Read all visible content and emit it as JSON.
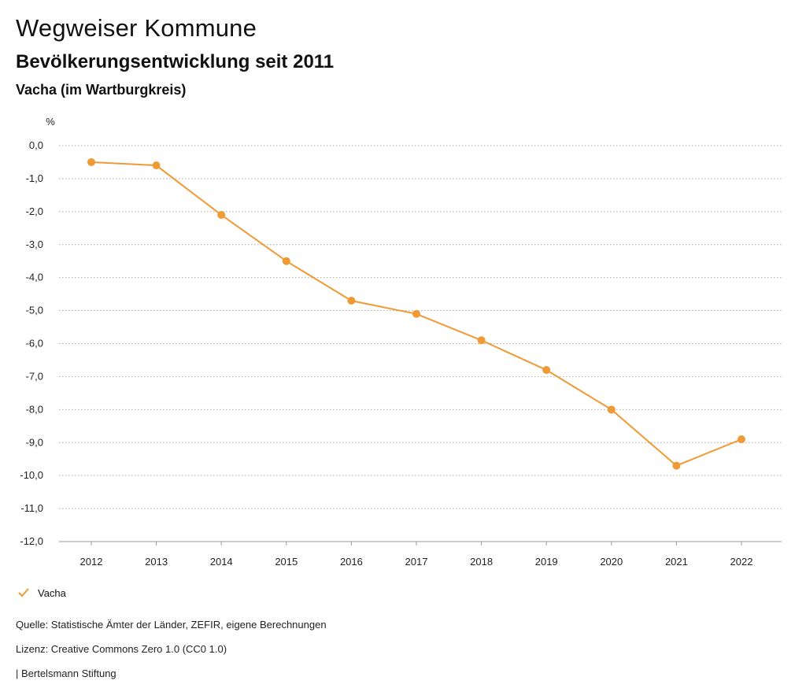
{
  "header": {
    "title": "Wegweiser Kommune",
    "subtitle": "Bevölkerungsentwicklung seit 2011",
    "region": "Vacha (im Wartburgkreis)"
  },
  "chart_data": {
    "type": "line",
    "unit_label": "%",
    "x": [
      "2012",
      "2013",
      "2014",
      "2015",
      "2016",
      "2017",
      "2018",
      "2019",
      "2020",
      "2021",
      "2022"
    ],
    "series": [
      {
        "name": "Vacha",
        "color": "#ef9a35",
        "values": [
          -0.5,
          -0.6,
          -2.1,
          -3.5,
          -4.7,
          -5.1,
          -5.9,
          -6.8,
          -8.0,
          -9.7,
          -8.9
        ]
      }
    ],
    "ylim": [
      -12,
      0
    ],
    "yticks": [
      "0,0",
      "-1,0",
      "-2,0",
      "-3,0",
      "-4,0",
      "-5,0",
      "-6,0",
      "-7,0",
      "-8,0",
      "-9,0",
      "-10,0",
      "-11,0",
      "-12,0"
    ],
    "grid": true,
    "legend_position": "bottom-left"
  },
  "legend": {
    "label": "Vacha"
  },
  "footer": {
    "source": "Quelle: Statistische Ämter der Länder, ZEFIR, eigene Berechnungen",
    "license": "Lizenz: Creative Commons Zero 1.0 (CC0 1.0)",
    "brand": "| Bertelsmann Stiftung"
  }
}
